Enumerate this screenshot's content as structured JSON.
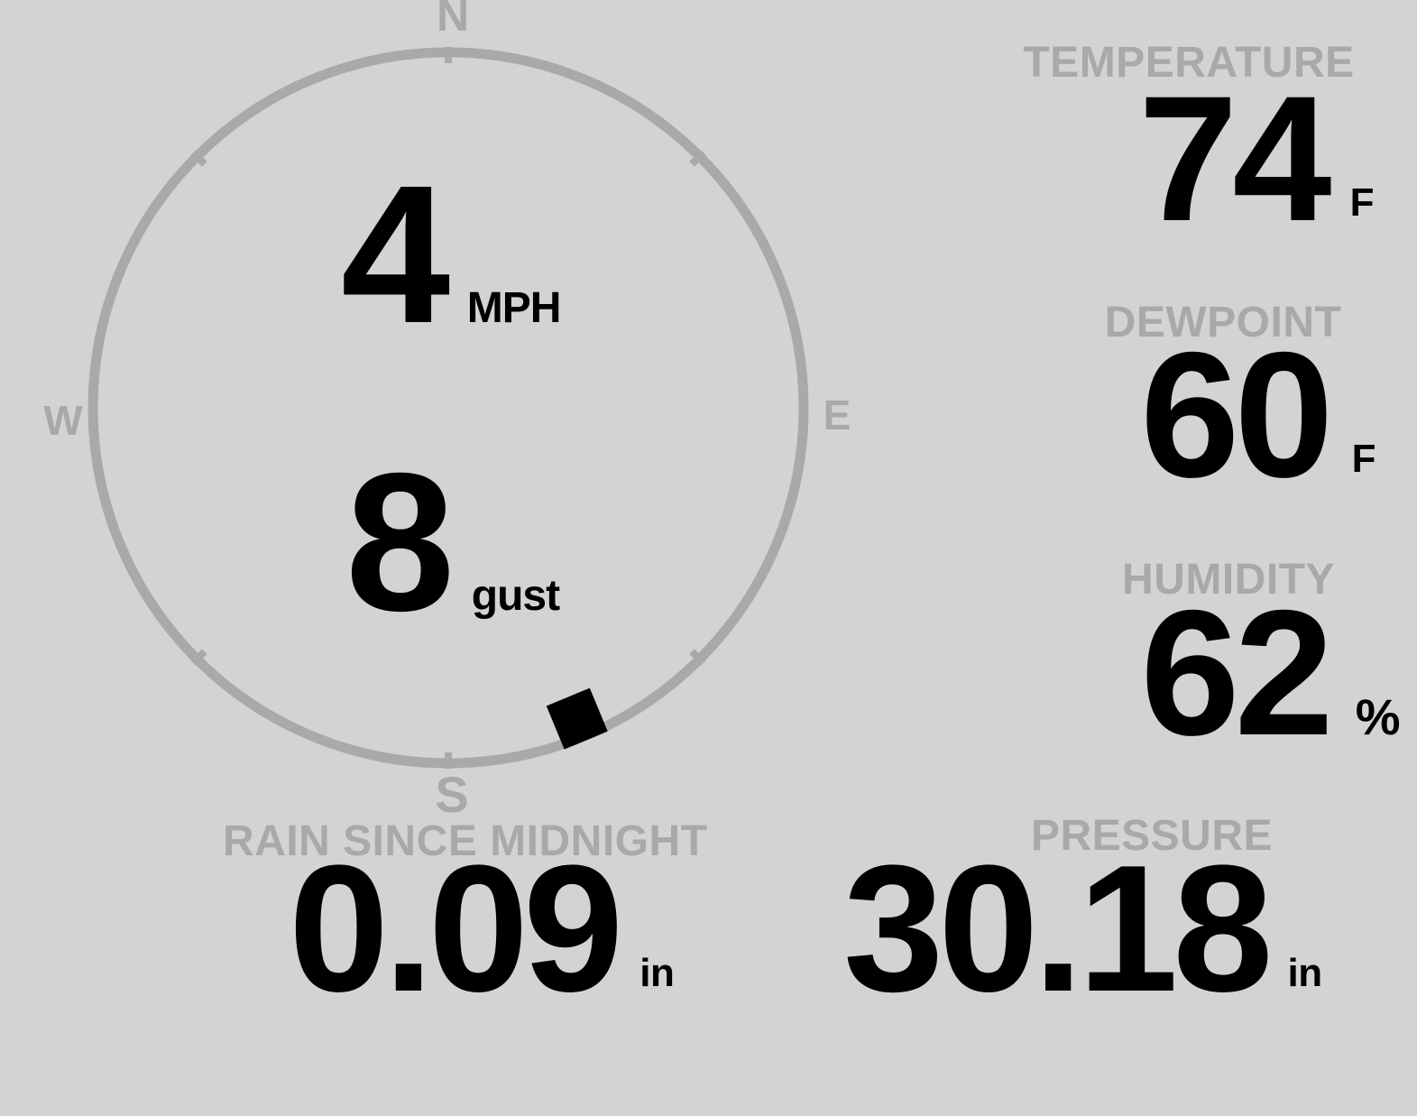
{
  "compass": {
    "cardinal": {
      "north": "N",
      "south": "S",
      "east": "E",
      "west": "W"
    },
    "wind_speed": {
      "value": "4",
      "unit": "MPH"
    },
    "wind_gust": {
      "value": "8",
      "unit": "gust"
    },
    "wind_direction_deg": 157.5
  },
  "metrics": {
    "temperature": {
      "label": "TEMPERATURE",
      "value": "74",
      "unit": "F"
    },
    "dewpoint": {
      "label": "DEWPOINT",
      "value": "60",
      "unit": "F"
    },
    "humidity": {
      "label": "HUMIDITY",
      "value": "62",
      "unit": "%"
    },
    "rain": {
      "label": "RAIN SINCE MIDNIGHT",
      "value": "0.09",
      "unit": "in"
    },
    "pressure": {
      "label": "PRESSURE",
      "value": "30.18",
      "unit": "in"
    }
  },
  "colors": {
    "background": "#d3d3d3",
    "muted": "#a9a9a9",
    "value_text": "#000000"
  }
}
